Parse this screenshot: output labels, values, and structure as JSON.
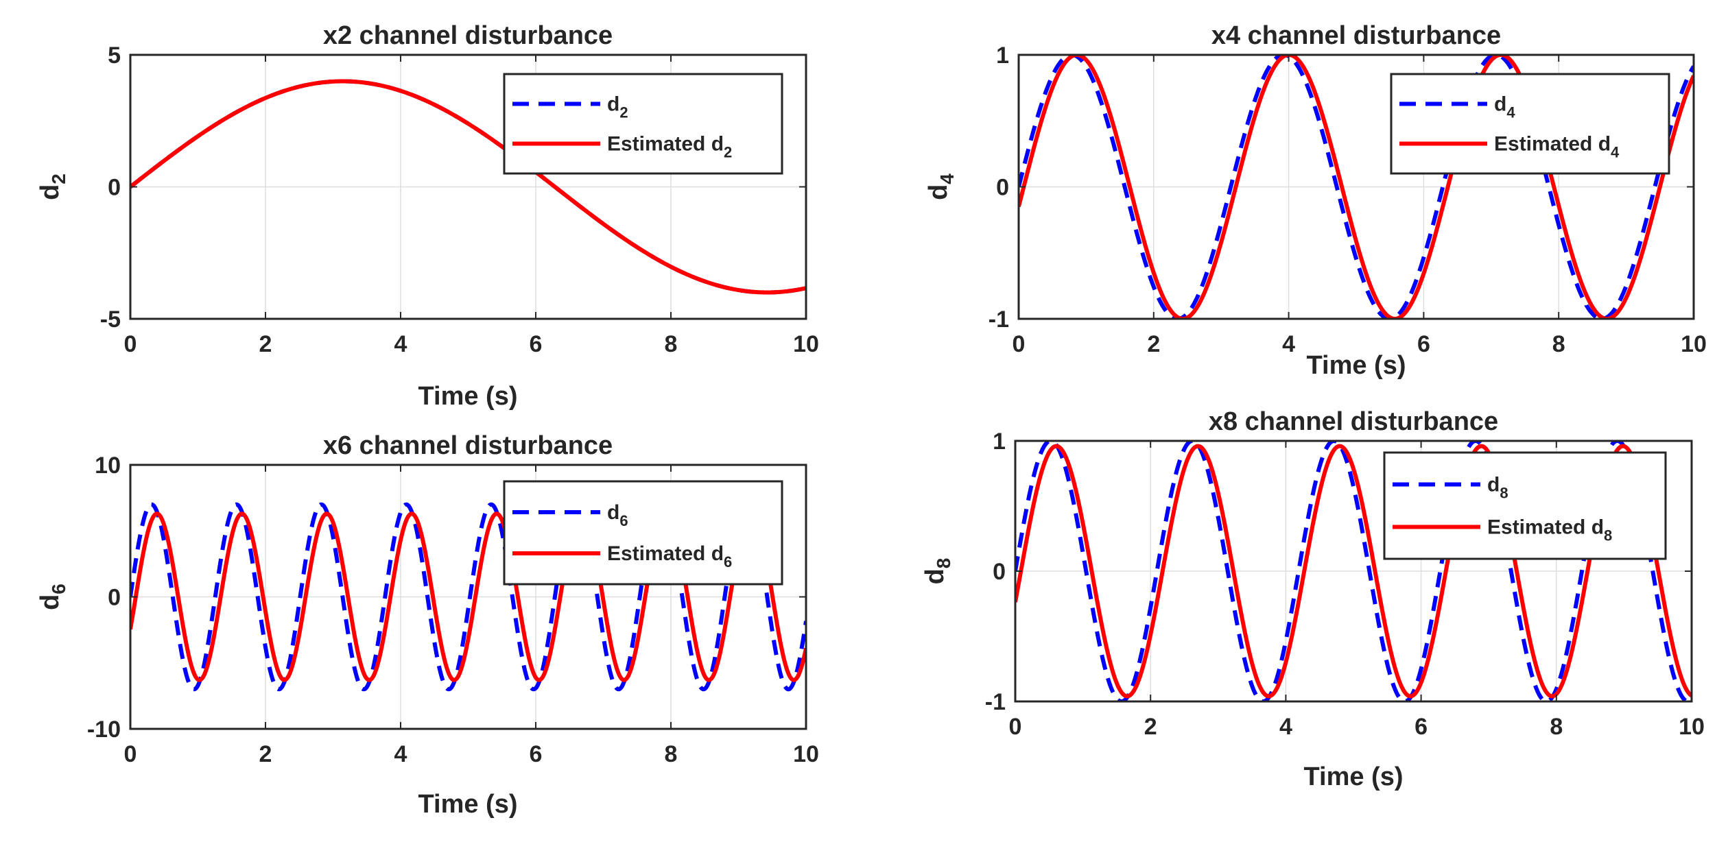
{
  "chart_data": [
    {
      "type": "line",
      "title": "x2 channel disturbance",
      "xlabel": "Time (s)",
      "ylabel": "d",
      "ylabel_subscript": "2",
      "xlim": [
        0,
        10
      ],
      "ylim": [
        -5,
        5
      ],
      "xticks": [
        0,
        2,
        4,
        6,
        8,
        10
      ],
      "yticks": [
        -5,
        0,
        5
      ],
      "grid": true,
      "legend_position": "top-right",
      "true_signal": {
        "amplitude": 4,
        "omega": 0.5,
        "phase": 0
      },
      "estimate_signal": {
        "amplitude": 4,
        "omega": 0.5,
        "phase": 0.0
      },
      "series": [
        {
          "name": "d",
          "name_subscript": "2",
          "color": "#0000ff",
          "style": "dashed",
          "x": [
            0,
            1,
            2,
            3,
            4,
            5,
            6,
            7,
            8,
            9,
            10
          ],
          "values": [
            0,
            1.92,
            3.37,
            3.99,
            3.64,
            2.39,
            0.56,
            -1.4,
            -3.03,
            -3.91,
            -3.84
          ]
        },
        {
          "name": "Estimated d",
          "name_subscript": "2",
          "color": "#ff0000",
          "style": "solid",
          "x": [
            0,
            1,
            2,
            3,
            4,
            5,
            6,
            7,
            8,
            9,
            10
          ],
          "values": [
            0,
            1.92,
            3.37,
            3.99,
            3.64,
            2.39,
            0.56,
            -1.4,
            -3.03,
            -3.91,
            -3.84
          ]
        }
      ]
    },
    {
      "type": "line",
      "title": "x4 channel disturbance",
      "xlabel": "Time (s)",
      "ylabel": "d",
      "ylabel_subscript": "4",
      "xlim": [
        0,
        10
      ],
      "ylim": [
        -1,
        1
      ],
      "xticks": [
        0,
        2,
        4,
        6,
        8,
        10
      ],
      "yticks": [
        -1,
        0,
        1
      ],
      "grid": true,
      "legend_position": "top-right",
      "true_signal": {
        "amplitude": 1,
        "omega": 2.0,
        "phase": 0
      },
      "estimate_signal": {
        "amplitude": 1,
        "omega": 2.0,
        "phase": -0.15
      },
      "series": [
        {
          "name": "d",
          "name_subscript": "4",
          "color": "#0000ff",
          "style": "dashed",
          "x": [
            0,
            1,
            2,
            3,
            4,
            5,
            6,
            7,
            8,
            9,
            10
          ],
          "values": [
            0,
            0.91,
            -0.76,
            -0.28,
            0.99,
            -0.54,
            -0.54,
            0.99,
            -0.29,
            -0.75,
            0.91
          ]
        },
        {
          "name": "Estimated d",
          "name_subscript": "4",
          "color": "#ff0000",
          "style": "solid",
          "x": [
            0,
            1,
            2,
            3,
            4,
            5,
            6,
            7,
            8,
            9,
            10
          ],
          "values": [
            0,
            0.95,
            -0.65,
            -0.42,
            0.99,
            -0.41,
            -0.66,
            0.95,
            -0.14,
            -0.84,
            0.84
          ]
        }
      ]
    },
    {
      "type": "line",
      "title": "x6 channel disturbance",
      "xlabel": "Time (s)",
      "ylabel": "d",
      "ylabel_subscript": "6",
      "xlim": [
        0,
        10
      ],
      "ylim": [
        -10,
        10
      ],
      "xticks": [
        0,
        2,
        4,
        6,
        8,
        10
      ],
      "yticks": [
        -10,
        0,
        10
      ],
      "grid": true,
      "legend_position": "top-right",
      "true_signal": {
        "amplitude": 7,
        "omega": 5.0,
        "phase": 0
      },
      "estimate_signal": {
        "amplitude": 6.3,
        "omega": 5.0,
        "phase": -0.4
      },
      "series": [
        {
          "name": "d",
          "name_subscript": "6",
          "color": "#0000ff",
          "style": "dashed",
          "x": [
            0,
            0.32,
            0.95,
            1.57,
            2.2,
            2.83,
            3.46,
            4.08,
            4.71,
            5.34,
            5.97,
            6.6,
            7.23,
            7.85,
            8.48,
            9.11,
            9.74
          ],
          "values": [
            0,
            7,
            -7,
            7,
            -7,
            7,
            -7,
            7,
            -7,
            7,
            -7,
            7,
            -7,
            7,
            -7,
            7,
            -7
          ]
        },
        {
          "name": "Estimated d",
          "name_subscript": "6",
          "color": "#ff0000",
          "style": "solid",
          "x": [
            0,
            0.39,
            1.02,
            1.65,
            2.28,
            2.91,
            3.53,
            4.16,
            4.79,
            5.42,
            6.05,
            6.68,
            7.3,
            7.93,
            8.56,
            9.19,
            9.82
          ],
          "values": [
            0,
            6.3,
            -6.3,
            6.3,
            -6.3,
            6.3,
            -6.3,
            6.3,
            -6.3,
            6.3,
            -6.3,
            6.3,
            -6.3,
            6.3,
            -6.3,
            6.3,
            -6.3
          ]
        }
      ]
    },
    {
      "type": "line",
      "title": "x8 channel disturbance",
      "xlabel": "Time (s)",
      "ylabel": "d",
      "ylabel_subscript": "8",
      "xlim": [
        0,
        10
      ],
      "ylim": [
        -1,
        1
      ],
      "xticks": [
        0,
        2,
        4,
        6,
        8,
        10
      ],
      "yticks": [
        -1,
        0,
        1
      ],
      "grid": true,
      "legend_position": "top-right",
      "true_signal": {
        "amplitude": 1,
        "omega": 3.0,
        "phase": 0
      },
      "estimate_signal": {
        "amplitude": 0.96,
        "omega": 3.0,
        "phase": -0.25
      },
      "series": [
        {
          "name": "d",
          "name_subscript": "8",
          "color": "#0000ff",
          "style": "dashed",
          "x": [
            0,
            0.52,
            1.57,
            2.62,
            3.67,
            4.71,
            5.76,
            6.81,
            7.85,
            8.9,
            9.95
          ],
          "values": [
            0,
            1,
            -1,
            1,
            -1,
            1,
            -1,
            1,
            -1,
            1,
            -1
          ]
        },
        {
          "name": "Estimated d",
          "name_subscript": "8",
          "color": "#ff0000",
          "style": "solid",
          "x": [
            0,
            0.61,
            1.65,
            2.7,
            3.75,
            4.8,
            5.84,
            6.89,
            7.94,
            8.99,
            10.0
          ],
          "values": [
            0,
            0.96,
            -0.96,
            0.96,
            -0.96,
            0.96,
            -0.96,
            0.96,
            -0.96,
            0.96,
            -0.94
          ]
        }
      ]
    }
  ]
}
